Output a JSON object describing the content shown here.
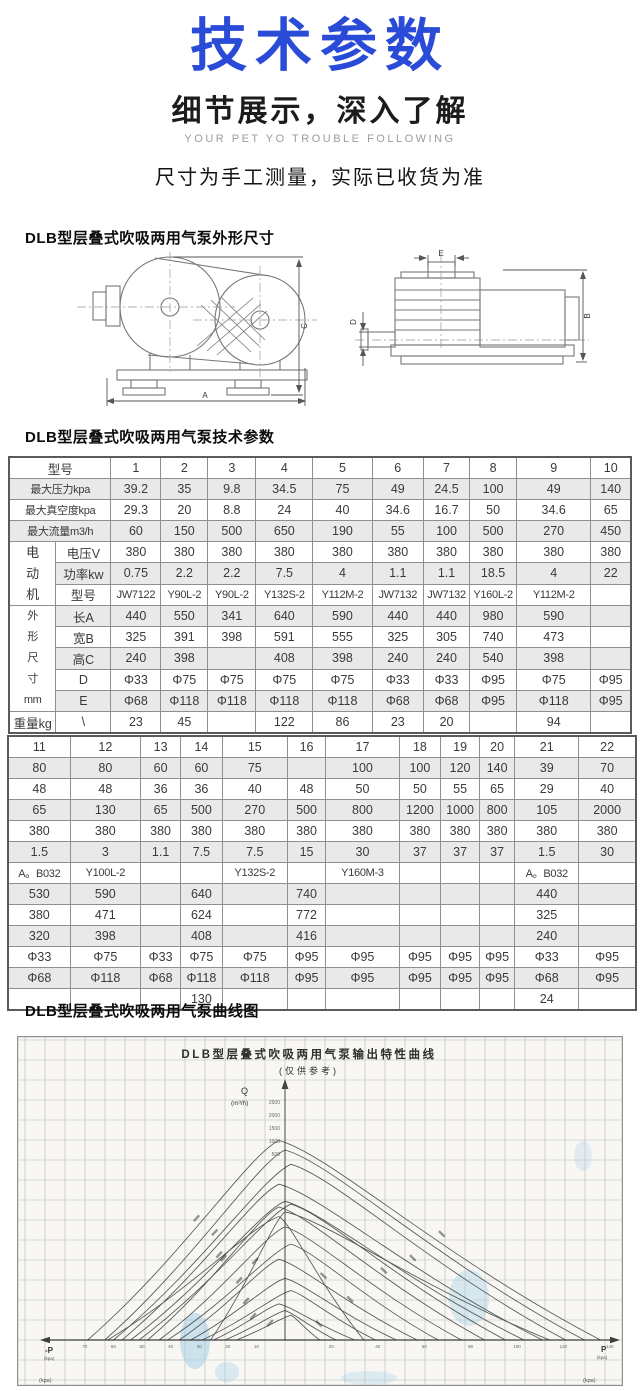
{
  "header": {
    "title": "技术参数",
    "title_color": "#2a4bd7",
    "subtitle": "细节展示，深入了解",
    "tagline": "YOUR PET YO TROUBLE FOLLOWING",
    "notice": "尺寸为手工测量，实际已收货为准"
  },
  "sections": {
    "dimensions_title": "DLB型层叠式吹吸两用气泵外形尺寸",
    "params_title": "DLB型层叠式吹吸两用气泵技术参数",
    "curves_title": "DLB型层叠式吹吸两用气泵曲线图"
  },
  "colors": {
    "accent_blue": "#2a4bd7",
    "row_shade": "#e9e9e9"
  },
  "drawing": {
    "dim_labels": [
      "A",
      "B",
      "C",
      "D",
      "E"
    ]
  },
  "table1": {
    "corner_label": "型号",
    "models": [
      "1",
      "2",
      "3",
      "4",
      "5",
      "6",
      "7",
      "8",
      "9",
      "10"
    ],
    "rows": [
      {
        "label": "最大压力kpa",
        "values": [
          "39.2",
          "35",
          "9.8",
          "34.5",
          "75",
          "49",
          "24.5",
          "100",
          "49",
          "140"
        ]
      },
      {
        "label": "最大真空度kpa",
        "values": [
          "29.3",
          "20",
          "8.8",
          "24",
          "40",
          "34.6",
          "16.7",
          "50",
          "34.6",
          "65"
        ]
      },
      {
        "label": "最大流量m3/h",
        "values": [
          "60",
          "150",
          "500",
          "650",
          "190",
          "55",
          "100",
          "500",
          "270",
          "450"
        ]
      },
      {
        "group": "电\n动\n机",
        "group_rows": 3,
        "label": "电压V",
        "values": [
          "380",
          "380",
          "380",
          "380",
          "380",
          "380",
          "380",
          "380",
          "380",
          "380"
        ]
      },
      {
        "label": "功率kw",
        "values": [
          "0.75",
          "2.2",
          "2.2",
          "7.5",
          "4",
          "1.1",
          "1.1",
          "18.5",
          "4",
          "22"
        ]
      },
      {
        "label": "型号",
        "values": [
          "JW7122",
          "Y90L-2",
          "Y90L-2",
          "Y132S-2",
          "Y112M-2",
          "JW7132",
          "JW7132",
          "Y160L-2",
          "Y112M-2",
          ""
        ]
      },
      {
        "group": "外\n形\n尺\n寸\nmm",
        "group_rows": 5,
        "label": "长A",
        "values": [
          "440",
          "550",
          "341",
          "640",
          "590",
          "440",
          "440",
          "980",
          "590",
          ""
        ]
      },
      {
        "label": "宽B",
        "values": [
          "325",
          "391",
          "398",
          "591",
          "555",
          "325",
          "305",
          "740",
          "473",
          ""
        ]
      },
      {
        "label": "高C",
        "values": [
          "240",
          "398",
          "",
          "408",
          "398",
          "240",
          "240",
          "540",
          "398",
          ""
        ]
      },
      {
        "label": "D",
        "values": [
          "Φ33",
          "Φ75",
          "Φ75",
          "Φ75",
          "Φ75",
          "Φ33",
          "Φ33",
          "Φ95",
          "Φ75",
          "Φ95"
        ]
      },
      {
        "label": "E",
        "values": [
          "Φ68",
          "Φ118",
          "Φ118",
          "Φ118",
          "Φ118",
          "Φ68",
          "Φ68",
          "Φ95",
          "Φ118",
          "Φ95"
        ]
      },
      {
        "label": "重量kg",
        "sublabel": "\\",
        "values": [
          "23",
          "45",
          "",
          "122",
          "86",
          "23",
          "20",
          "",
          "94",
          ""
        ]
      }
    ]
  },
  "table2": {
    "models": [
      "11",
      "12",
      "13",
      "14",
      "15",
      "16",
      "17",
      "18",
      "19",
      "20",
      "21",
      "22"
    ],
    "rows": [
      {
        "values": [
          "80",
          "80",
          "60",
          "60",
          "75",
          "",
          "100",
          "100",
          "120",
          "140",
          "39",
          "70"
        ]
      },
      {
        "values": [
          "48",
          "48",
          "36",
          "36",
          "40",
          "48",
          "50",
          "50",
          "55",
          "65",
          "29",
          "40"
        ]
      },
      {
        "values": [
          "65",
          "130",
          "65",
          "500",
          "270",
          "500",
          "800",
          "1200",
          "1000",
          "800",
          "105",
          "2000"
        ]
      },
      {
        "values": [
          "380",
          "380",
          "380",
          "380",
          "380",
          "380",
          "380",
          "380",
          "380",
          "380",
          "380",
          "380"
        ]
      },
      {
        "values": [
          "1.5",
          "3",
          "1.1",
          "7.5",
          "7.5",
          "15",
          "30",
          "37",
          "37",
          "37",
          "1.5",
          "30"
        ]
      },
      {
        "values": [
          "A。B032",
          "Y100L-2",
          "",
          "",
          "Y132S-2",
          "",
          "Y160M-3",
          "",
          "",
          "",
          "A。B032",
          ""
        ]
      },
      {
        "values": [
          "530",
          "590",
          "",
          "640",
          "",
          "740",
          "",
          "",
          "",
          "",
          "440",
          ""
        ]
      },
      {
        "values": [
          "380",
          "471",
          "",
          "624",
          "",
          "772",
          "",
          "",
          "",
          "",
          "325",
          ""
        ]
      },
      {
        "values": [
          "320",
          "398",
          "",
          "408",
          "",
          "416",
          "",
          "",
          "",
          "",
          "240",
          ""
        ]
      },
      {
        "values": [
          "Φ33",
          "Φ75",
          "Φ33",
          "Φ75",
          "Φ75",
          "Φ95",
          "Φ95",
          "Φ95",
          "Φ95",
          "Φ95",
          "Φ33",
          "Φ95"
        ]
      },
      {
        "values": [
          "Φ68",
          "Φ118",
          "Φ68",
          "Φ118",
          "Φ118",
          "Φ95",
          "Φ95",
          "Φ95",
          "Φ95",
          "Φ95",
          "Φ68",
          "Φ95"
        ]
      },
      {
        "values": [
          "",
          "",
          "",
          "130",
          "",
          "",
          "",
          "",
          "",
          "",
          "24",
          ""
        ]
      }
    ]
  },
  "chart_data": {
    "type": "line",
    "title": "DLB型层叠式吹吸两用气泵输出特性曲线",
    "subtitle": "(仅供参考)",
    "ylabel": "Q",
    "ylabel_unit": "(m³/h)",
    "xlabel_left": "-P",
    "xlabel_right": "P",
    "axis_unit": "(kpa)",
    "x_range": [
      -70,
      140
    ],
    "grid": true,
    "y_ticks": [
      2500,
      2000,
      1500,
      1000,
      500
    ],
    "x_ticks_left": [
      70,
      60,
      50,
      40,
      30,
      20,
      10
    ],
    "x_ticks_right": [
      20,
      40,
      60,
      80,
      100,
      120,
      140
    ],
    "series": [
      {
        "name": "curve-1",
        "max_vacuum_kpa": 69,
        "max_pressure_kpa": 136,
        "max_flow_m3h": 2100
      },
      {
        "name": "curve-2",
        "max_vacuum_kpa": 63,
        "max_pressure_kpa": 129,
        "max_flow_m3h": 2000
      },
      {
        "name": "curve-3",
        "max_vacuum_kpa": 60,
        "max_pressure_kpa": 121,
        "max_flow_m3h": 1850
      },
      {
        "name": "curve-4",
        "max_vacuum_kpa": 57,
        "max_pressure_kpa": 111,
        "max_flow_m3h": 1640
      },
      {
        "name": "curve-5",
        "max_vacuum_kpa": 54,
        "max_pressure_kpa": 103,
        "max_flow_m3h": 1460
      },
      {
        "name": "curve-6",
        "max_vacuum_kpa": 51,
        "max_pressure_kpa": 95,
        "max_flow_m3h": 1430
      },
      {
        "name": "curve-7",
        "max_vacuum_kpa": 48,
        "max_pressure_kpa": 86,
        "max_flow_m3h": 1400
      },
      {
        "name": "curve-8",
        "max_vacuum_kpa": 44,
        "max_pressure_kpa": 76,
        "max_flow_m3h": 1190
      },
      {
        "name": "curve-9",
        "max_vacuum_kpa": 41,
        "max_pressure_kpa": 66,
        "max_flow_m3h": 1010
      },
      {
        "name": "curve-10",
        "max_vacuum_kpa": 37,
        "max_pressure_kpa": 57,
        "max_flow_m3h": 850
      },
      {
        "name": "curve-11",
        "max_vacuum_kpa": 33,
        "max_pressure_kpa": 48,
        "max_flow_m3h": 650
      },
      {
        "name": "curve-12",
        "max_vacuum_kpa": 29,
        "max_pressure_kpa": 39,
        "max_flow_m3h": 520
      },
      {
        "name": "curve-13",
        "max_vacuum_kpa": 25,
        "max_pressure_kpa": 30,
        "max_flow_m3h": 380
      },
      {
        "name": "curve-14",
        "max_vacuum_kpa": 21,
        "max_pressure_kpa": 22,
        "max_flow_m3h": 310
      },
      {
        "name": "curve-15",
        "max_vacuum_kpa": 17,
        "max_pressure_kpa": 15,
        "max_flow_m3h": 260
      },
      {
        "name": "curve-16",
        "max_vacuum_kpa": 62,
        "max_pressure_kpa": 34,
        "max_flow_m3h": 1300
      },
      {
        "name": "curve-17",
        "max_vacuum_kpa": 26,
        "max_pressure_kpa": 114,
        "max_flow_m3h": 1350
      }
    ]
  }
}
